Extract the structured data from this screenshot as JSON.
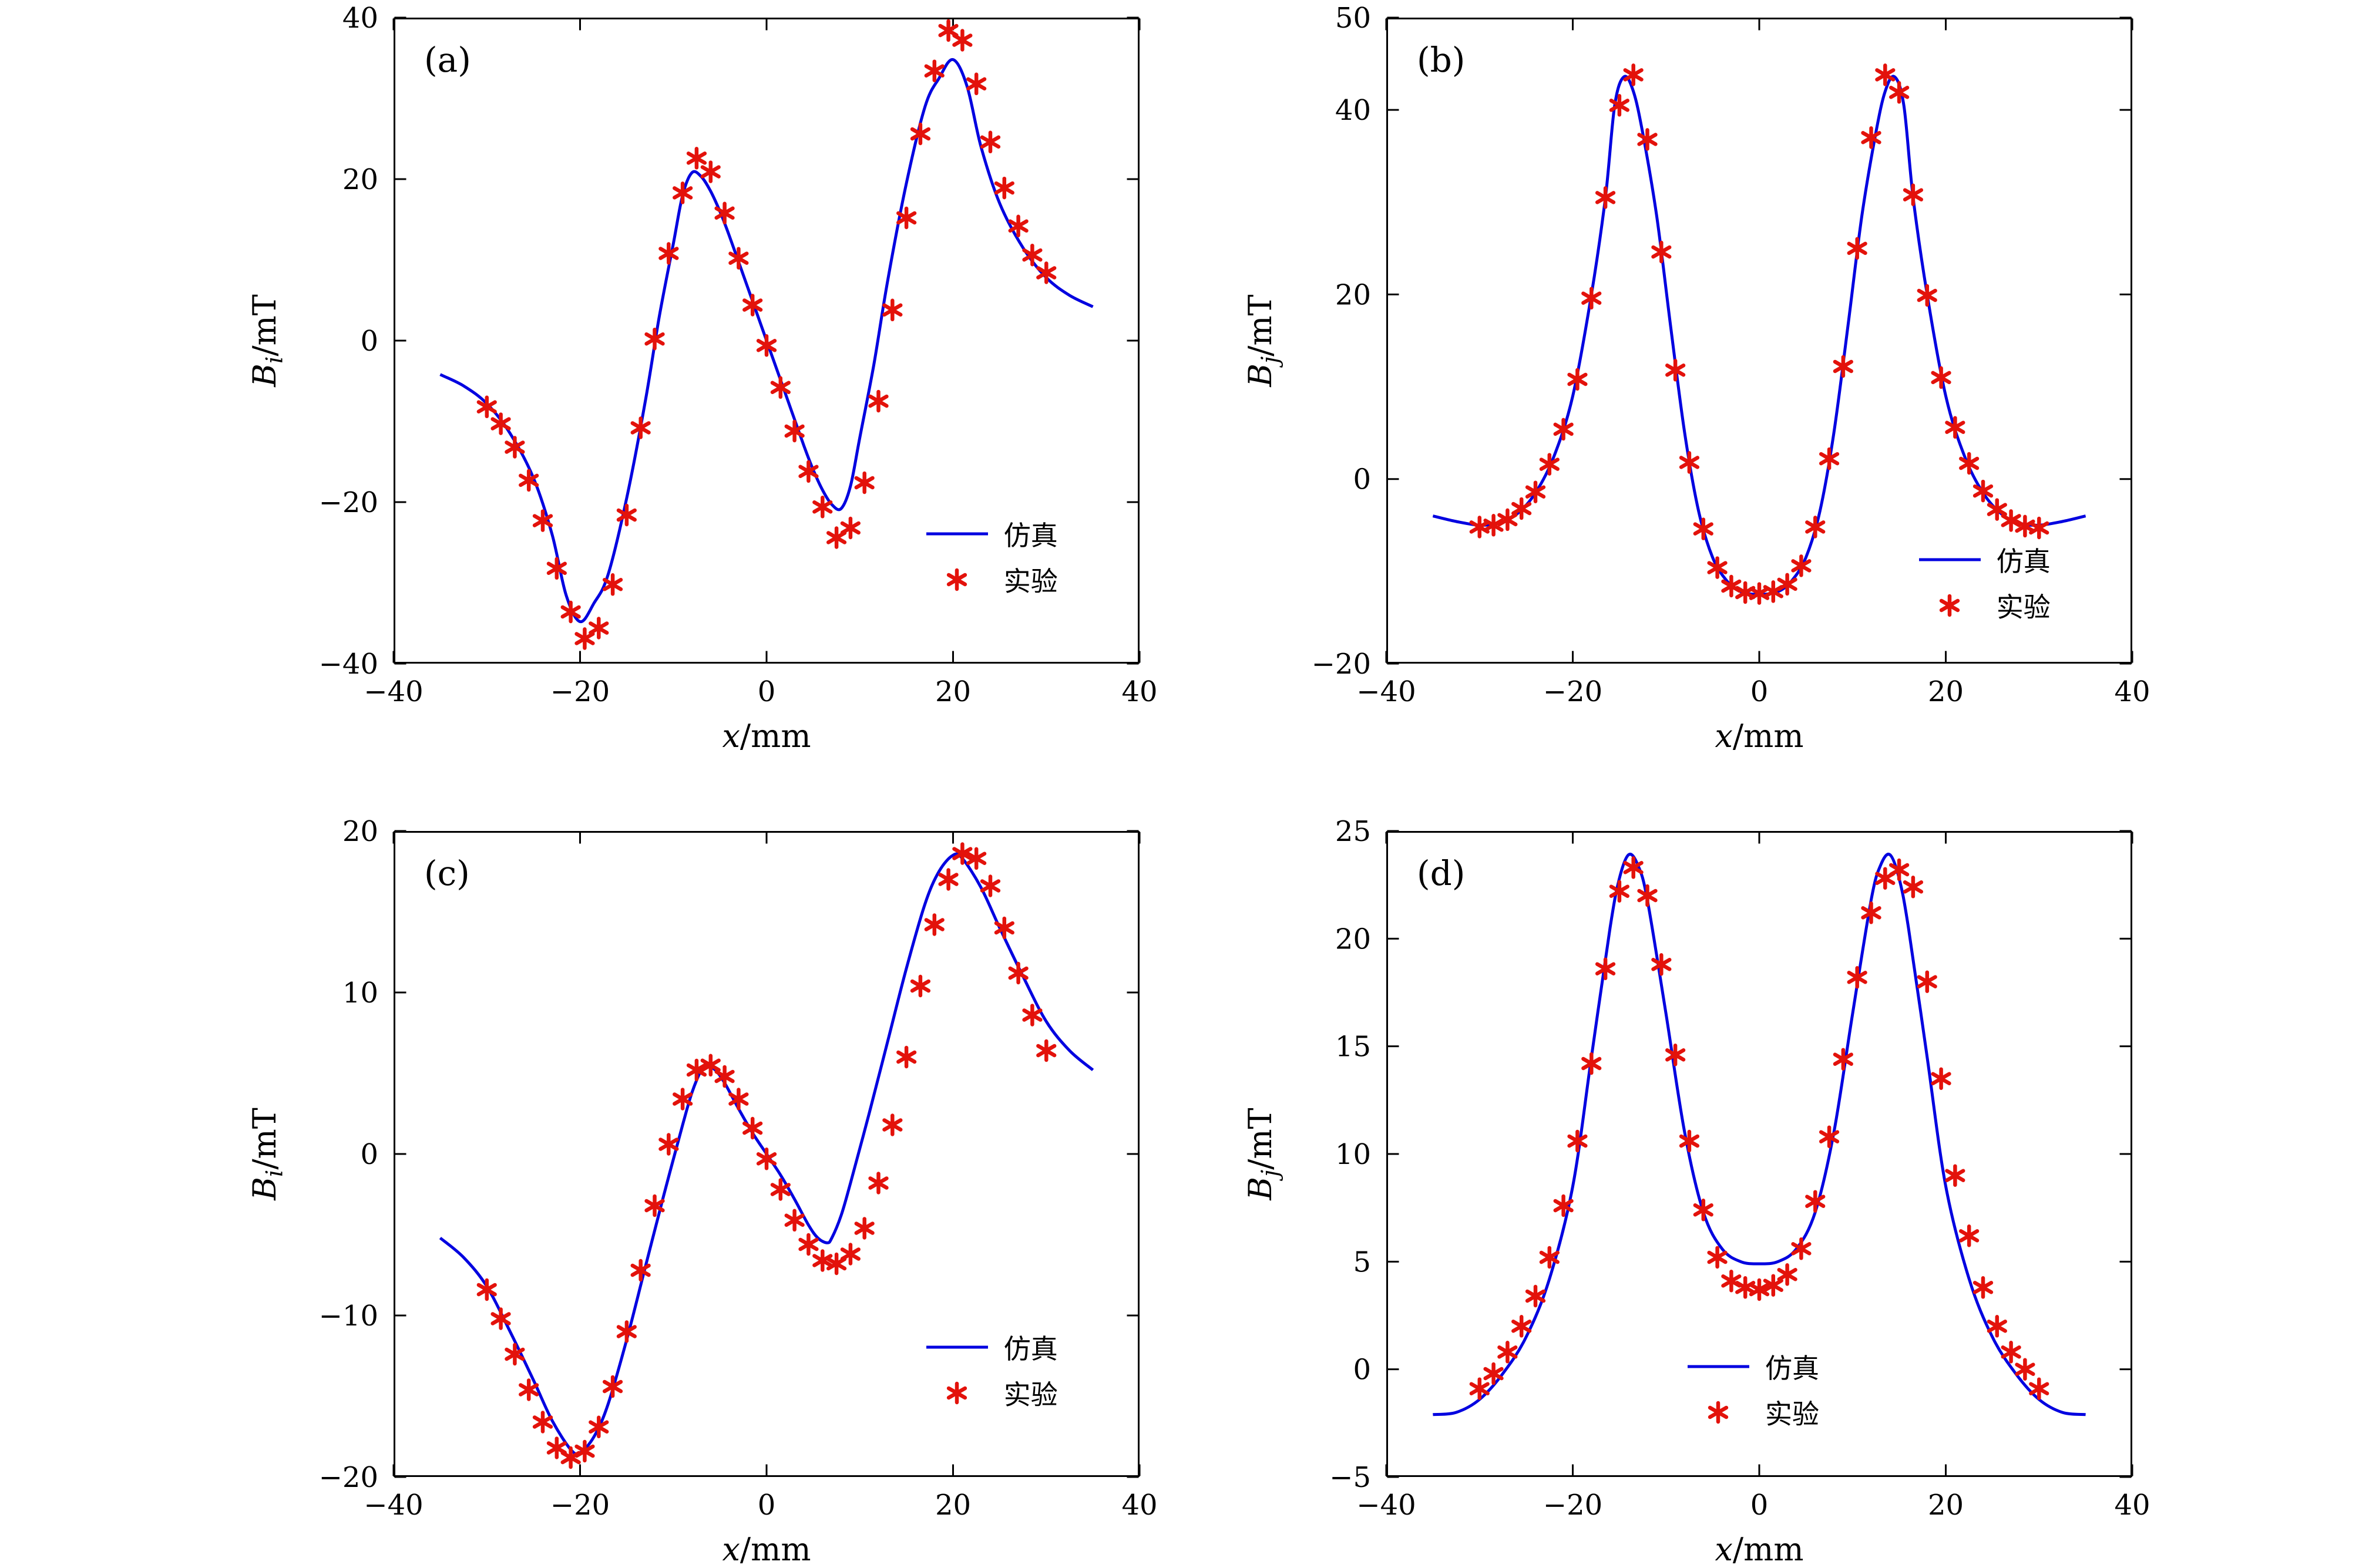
{
  "figure": {
    "background": "#ffffff"
  },
  "chart_data": [
    {
      "type": "line",
      "panel_label": "(a)",
      "xlabel_var": "x",
      "xlabel_unit": "/mm",
      "ylabel_var": "B",
      "ylabel_sub": "i",
      "ylabel_unit": "/mT",
      "xlim": [
        -40,
        40
      ],
      "ylim": [
        -40,
        40
      ],
      "xticks": [
        -40,
        -20,
        0,
        20,
        40
      ],
      "yticks": [
        -40,
        -20,
        0,
        20,
        40
      ],
      "grid": false,
      "colors": {
        "line": "#0000e0",
        "marker": "#e3120b"
      },
      "legend": {
        "line_label": "仿真",
        "marker_label": "实验",
        "pos_frac": {
          "left": 0.71,
          "top": 0.77
        }
      },
      "series": [
        {
          "name": "仿真",
          "type": "line",
          "x": [
            -35,
            -32.5,
            -30,
            -27.5,
            -25,
            -23,
            -21.5,
            -20,
            -18.5,
            -17,
            -15,
            -13,
            -11.5,
            -10,
            -9,
            -8,
            -7,
            -6,
            -5,
            -4,
            -2,
            0,
            2,
            4,
            5,
            6,
            7,
            8,
            9,
            10,
            11.5,
            13,
            15,
            17,
            18.5,
            20,
            21.5,
            23,
            25,
            27.5,
            30,
            32.5,
            35
          ],
          "y": [
            -4.2,
            -5.6,
            -7.8,
            -11.5,
            -17,
            -24,
            -31.5,
            -34.8,
            -32.5,
            -29,
            -19.5,
            -7.5,
            3,
            12,
            18,
            20.8,
            20.3,
            18.5,
            16,
            13,
            6.5,
            0,
            -6.5,
            -13,
            -16,
            -18.5,
            -20.3,
            -20.8,
            -18,
            -12,
            -3,
            7.5,
            19.5,
            29,
            32.5,
            34.8,
            31.5,
            24,
            17,
            11.5,
            7.8,
            5.6,
            4.2
          ]
        },
        {
          "name": "实验",
          "type": "scatter",
          "x": [
            -30,
            -28.5,
            -27,
            -25.5,
            -24,
            -22.5,
            -21,
            -19.5,
            -18,
            -16.5,
            -15,
            -13.5,
            -12,
            -10.5,
            -9,
            -7.5,
            -6,
            -4.5,
            -3,
            -1.5,
            0,
            1.5,
            3,
            4.5,
            6,
            7.5,
            9,
            10.5,
            12,
            13.5,
            15,
            16.5,
            18,
            19.5,
            21,
            22.5,
            24,
            25.5,
            27,
            28.5,
            30
          ],
          "y": [
            -8.2,
            -10.3,
            -13.2,
            -17.3,
            -22.3,
            -28.2,
            -33.6,
            -36.9,
            -35.6,
            -30.2,
            -21.6,
            -10.8,
            0.2,
            10.8,
            18.3,
            22.6,
            20.9,
            15.8,
            10.2,
            4.4,
            -0.6,
            -5.8,
            -11.2,
            -16.2,
            -20.6,
            -24.4,
            -23.2,
            -17.6,
            -7.5,
            3.8,
            15.2,
            25.6,
            33.4,
            38.4,
            37.2,
            31.8,
            24.6,
            18.9,
            14.2,
            10.6,
            8.4
          ]
        }
      ]
    },
    {
      "type": "line",
      "panel_label": "(b)",
      "xlabel_var": "x",
      "xlabel_unit": "/mm",
      "ylabel_var": "B",
      "ylabel_sub": "j",
      "ylabel_unit": "/mT",
      "xlim": [
        -40,
        40
      ],
      "ylim": [
        -20,
        50
      ],
      "xticks": [
        -40,
        -20,
        0,
        20,
        40
      ],
      "yticks": [
        -20,
        0,
        20,
        40,
        50
      ],
      "grid": false,
      "colors": {
        "line": "#0000e0",
        "marker": "#e3120b"
      },
      "legend": {
        "line_label": "仿真",
        "marker_label": "实验",
        "pos_frac": {
          "left": 0.71,
          "top": 0.81
        }
      },
      "series": [
        {
          "name": "仿真",
          "type": "line",
          "x": [
            -35,
            -32.5,
            -30,
            -28,
            -26,
            -24,
            -22,
            -20,
            -18,
            -16.5,
            -15.5,
            -14.5,
            -13.5,
            -12.5,
            -11,
            -9.5,
            -8,
            -6.5,
            -5,
            -3.5,
            -2,
            0,
            2,
            3.5,
            5,
            6.5,
            8,
            9.5,
            11,
            12.5,
            13.5,
            14.5,
            15.5,
            16.5,
            18,
            20,
            22,
            24,
            26,
            28,
            30,
            32.5,
            35
          ],
          "y": [
            -4,
            -4.6,
            -5,
            -4.8,
            -3.8,
            -1.5,
            2.5,
            9,
            20,
            30.5,
            40.5,
            43.6,
            42,
            37.5,
            28.5,
            16.5,
            5,
            -3.5,
            -8.5,
            -11,
            -12.2,
            -12.5,
            -12.2,
            -11,
            -8.5,
            -3.5,
            5,
            16.5,
            28.5,
            37.5,
            42,
            43.6,
            40.5,
            30.5,
            20,
            9,
            2.5,
            -1.5,
            -3.8,
            -4.8,
            -5,
            -4.6,
            -4
          ]
        },
        {
          "name": "实验",
          "type": "scatter",
          "x": [
            -30,
            -28.5,
            -27,
            -25.5,
            -24,
            -22.5,
            -21,
            -19.5,
            -18,
            -16.5,
            -15,
            -13.5,
            -12,
            -10.5,
            -9,
            -7.5,
            -6,
            -4.5,
            -3,
            -1.5,
            0,
            1.5,
            3,
            4.5,
            6,
            7.5,
            9,
            10.5,
            12,
            13.5,
            15,
            16.5,
            18,
            19.5,
            21,
            22.5,
            24,
            25.5,
            27,
            28.5,
            30
          ],
          "y": [
            -5.2,
            -5.0,
            -4.4,
            -3.2,
            -1.4,
            1.6,
            5.4,
            10.8,
            19.6,
            30.5,
            40.5,
            43.8,
            36.8,
            24.6,
            11.8,
            1.8,
            -5.4,
            -9.6,
            -11.6,
            -12.3,
            -12.4,
            -12.2,
            -11.4,
            -9.4,
            -5.2,
            2.2,
            12.2,
            25.0,
            37.0,
            43.8,
            41.9,
            30.8,
            19.9,
            11.0,
            5.6,
            1.7,
            -1.3,
            -3.3,
            -4.5,
            -5.1,
            -5.3
          ]
        }
      ]
    },
    {
      "type": "line",
      "panel_label": "(c)",
      "xlabel_var": "x",
      "xlabel_unit": "/mm",
      "ylabel_var": "B",
      "ylabel_sub": "i",
      "ylabel_unit": "/mT",
      "xlim": [
        -40,
        40
      ],
      "ylim": [
        -20,
        20
      ],
      "xticks": [
        -40,
        -20,
        0,
        20,
        40
      ],
      "yticks": [
        -20,
        -10,
        0,
        10,
        20
      ],
      "grid": false,
      "colors": {
        "line": "#0000e0",
        "marker": "#e3120b"
      },
      "legend": {
        "line_label": "仿真",
        "marker_label": "实验",
        "pos_frac": {
          "left": 0.71,
          "top": 0.77
        }
      },
      "series": [
        {
          "name": "仿真",
          "type": "line",
          "x": [
            -35,
            -32.5,
            -30,
            -27.5,
            -25,
            -23,
            -21,
            -20,
            -18.5,
            -17,
            -15,
            -13,
            -11,
            -9,
            -8,
            -7,
            -6.5,
            -5.5,
            -4.5,
            -3,
            -1.5,
            0,
            1.5,
            3,
            4.5,
            5.5,
            6.5,
            7,
            8,
            9,
            11,
            13,
            15,
            17,
            18.5,
            20,
            21,
            23,
            25,
            27.5,
            30,
            32.5,
            35
          ],
          "y": [
            -5.2,
            -6.4,
            -8.2,
            -11,
            -14,
            -16.5,
            -18.3,
            -18.5,
            -17.5,
            -15.5,
            -11.5,
            -7,
            -2.5,
            1.8,
            3.8,
            5.2,
            5.5,
            5.2,
            4.4,
            2.8,
            1.3,
            0,
            -1.3,
            -2.8,
            -4.4,
            -5.2,
            -5.5,
            -5.2,
            -3.8,
            -1.8,
            2.5,
            7,
            11.5,
            15.5,
            17.5,
            18.5,
            18.3,
            16.5,
            14,
            11,
            8.2,
            6.4,
            5.2
          ]
        },
        {
          "name": "实验",
          "type": "scatter",
          "x": [
            -30,
            -28.5,
            -27,
            -25.5,
            -24,
            -22.5,
            -21,
            -19.5,
            -18,
            -16.5,
            -15,
            -13.5,
            -12,
            -10.5,
            -9,
            -7.5,
            -6,
            -4.5,
            -3,
            -1.5,
            0,
            1.5,
            3,
            4.5,
            6,
            7.5,
            9,
            10.5,
            12,
            13.5,
            15,
            16.5,
            18,
            19.5,
            21,
            22.5,
            24,
            25.5,
            27,
            28.5,
            30
          ],
          "y": [
            -8.4,
            -10.2,
            -12.4,
            -14.6,
            -16.6,
            -18.2,
            -18.8,
            -18.4,
            -16.9,
            -14.4,
            -11.0,
            -7.2,
            -3.2,
            0.6,
            3.4,
            5.2,
            5.5,
            4.8,
            3.4,
            1.6,
            -0.3,
            -2.2,
            -4.1,
            -5.6,
            -6.6,
            -6.8,
            -6.2,
            -4.6,
            -1.8,
            1.8,
            6.0,
            10.4,
            14.2,
            17.0,
            18.6,
            18.3,
            16.6,
            14.0,
            11.2,
            8.6,
            6.4
          ]
        }
      ]
    },
    {
      "type": "line",
      "panel_label": "(d)",
      "xlabel_var": "x",
      "xlabel_unit": "/mm",
      "ylabel_var": "B",
      "ylabel_sub": "j",
      "ylabel_unit": "/mT",
      "xlim": [
        -40,
        40
      ],
      "ylim": [
        -5,
        25
      ],
      "xticks": [
        -40,
        -20,
        0,
        20,
        40
      ],
      "yticks": [
        -5,
        0,
        5,
        10,
        15,
        20,
        25
      ],
      "grid": false,
      "colors": {
        "line": "#0000e0",
        "marker": "#e3120b"
      },
      "legend": {
        "line_label": "仿真",
        "marker_label": "实验",
        "pos_frac": {
          "left": 0.4,
          "top": 0.8
        }
      },
      "series": [
        {
          "name": "仿真",
          "type": "line",
          "x": [
            -35,
            -32.5,
            -30,
            -27.5,
            -25,
            -22.5,
            -20,
            -18,
            -16,
            -15,
            -14,
            -13,
            -12,
            -10,
            -8,
            -6,
            -4,
            -2,
            0,
            2,
            4,
            6,
            8,
            10,
            12,
            13,
            14,
            15,
            16,
            18,
            20,
            22.5,
            25,
            27.5,
            30,
            32.5,
            35
          ],
          "y": [
            -2.1,
            -2.0,
            -1.4,
            -0.2,
            1.5,
            4.2,
            8.5,
            14.5,
            20.5,
            22.8,
            23.9,
            23.4,
            21.8,
            16.5,
            11,
            7.3,
            5.6,
            5.0,
            4.9,
            5.0,
            5.6,
            7.3,
            11,
            16.5,
            21.8,
            23.4,
            23.9,
            22.8,
            20.5,
            14.5,
            8.5,
            4.2,
            1.5,
            -0.2,
            -1.4,
            -2.0,
            -2.1
          ]
        },
        {
          "name": "实验",
          "type": "scatter",
          "x": [
            -30,
            -28.5,
            -27,
            -25.5,
            -24,
            -22.5,
            -21,
            -19.5,
            -18,
            -16.5,
            -15,
            -13.5,
            -12,
            -10.5,
            -9,
            -7.5,
            -6,
            -4.5,
            -3,
            -1.5,
            0,
            1.5,
            3,
            4.5,
            6,
            7.5,
            9,
            10.5,
            12,
            13.5,
            15,
            16.5,
            18,
            19.5,
            21,
            22.5,
            24,
            25.5,
            27,
            28.5,
            30
          ],
          "y": [
            -0.9,
            -0.2,
            0.8,
            2.0,
            3.4,
            5.2,
            7.6,
            10.6,
            14.2,
            18.6,
            22.2,
            23.3,
            22.0,
            18.8,
            14.6,
            10.6,
            7.4,
            5.2,
            4.1,
            3.8,
            3.7,
            3.9,
            4.4,
            5.6,
            7.8,
            10.8,
            14.4,
            18.2,
            21.2,
            22.8,
            23.2,
            22.4,
            18.0,
            13.5,
            9.0,
            6.2,
            3.8,
            2.0,
            0.8,
            0.0,
            -0.9
          ]
        }
      ]
    }
  ]
}
